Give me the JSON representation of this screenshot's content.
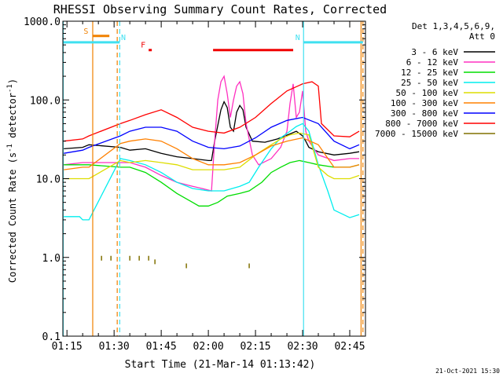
{
  "chart_data": {
    "type": "line",
    "title": "RHESSI Observing Summary Count Rates, Corrected",
    "xlabel": "Start Time (21-Mar-14 01:13:42)",
    "ylabel_main": "Corrected Count Rate (s",
    "ylabel_sup1": "-1",
    "ylabel_mid": " detector",
    "ylabel_sup2": "-1",
    "ylabel_end": ")",
    "yscale": "log",
    "ylim": [
      0.1,
      1000
    ],
    "xlim_minutes": [
      73.7,
      170
    ],
    "y_ticks": [
      {
        "v": 0.1,
        "label": "0.1"
      },
      {
        "v": 1,
        "label": "1.0"
      },
      {
        "v": 10,
        "label": "10.0"
      },
      {
        "v": 100,
        "label": "100.0"
      },
      {
        "v": 1000,
        "label": "1000.0"
      }
    ],
    "x_ticks": [
      {
        "t": 75,
        "label": "01:15"
      },
      {
        "t": 90,
        "label": "01:30"
      },
      {
        "t": 105,
        "label": "01:45"
      },
      {
        "t": 120,
        "label": "02:00"
      },
      {
        "t": 135,
        "label": "02:15"
      },
      {
        "t": 150,
        "label": "02:30"
      },
      {
        "t": 165,
        "label": "02:45"
      }
    ],
    "legend": {
      "header1": "Det 1,3,4,5,6,9,",
      "header2": "Att 0",
      "placement": "right"
    },
    "footer": "21-Oct-2021 15:30",
    "flags": [
      {
        "label": "S",
        "color": "#f08000",
        "start": 83.3,
        "end": 88.5,
        "y": 650
      },
      {
        "label": "N",
        "color": "#40e0f0",
        "start": 73.7,
        "end": 91.8,
        "y": 540
      },
      {
        "label": "N",
        "color": "#40e0f0",
        "start": 150.2,
        "end": 169.2,
        "y": 540
      },
      {
        "label": "F",
        "color": "#f00000",
        "start": 101.0,
        "end": 102.0,
        "y": 430
      },
      {
        "label": "",
        "color": "#f00000",
        "start": 121.5,
        "end": 147.0,
        "y": 430
      }
    ],
    "vlines": [
      {
        "t": 73.8,
        "color": "#40e0f0",
        "dash": false
      },
      {
        "t": 83.2,
        "color": "#f08000",
        "dash": false
      },
      {
        "t": 91.0,
        "color": "#f08000",
        "dash": true
      },
      {
        "t": 91.8,
        "color": "#40e0f0",
        "dash": true
      },
      {
        "t": 150.3,
        "color": "#40e0f0",
        "dash": false
      },
      {
        "t": 168.6,
        "color": "#f08000",
        "dash": false
      },
      {
        "t": 169.2,
        "color": "#f08000",
        "dash": true
      }
    ],
    "series": [
      {
        "name": "3 - 6 keV",
        "color": "#000000",
        "data": [
          [
            74,
            24
          ],
          [
            80,
            25
          ],
          [
            82,
            27
          ],
          [
            92,
            25
          ],
          [
            95,
            23
          ],
          [
            100,
            24
          ],
          [
            105,
            21
          ],
          [
            110,
            19
          ],
          [
            115,
            18
          ],
          [
            120,
            17
          ],
          [
            121,
            17
          ],
          [
            122,
            30
          ],
          [
            124,
            75
          ],
          [
            125,
            95
          ],
          [
            126,
            80
          ],
          [
            127,
            45
          ],
          [
            128,
            40
          ],
          [
            129,
            70
          ],
          [
            130,
            85
          ],
          [
            131,
            75
          ],
          [
            132,
            45
          ],
          [
            134,
            30
          ],
          [
            138,
            29
          ],
          [
            142,
            32
          ],
          [
            146,
            37
          ],
          [
            148,
            40
          ],
          [
            150,
            35
          ],
          [
            151,
            30
          ],
          [
            152,
            25
          ],
          [
            155,
            22
          ],
          [
            160,
            20
          ],
          [
            165,
            21
          ],
          [
            168,
            22
          ]
        ]
      },
      {
        "name": "6 - 12 keV",
        "color": "#ff30c0",
        "data": [
          [
            74,
            15
          ],
          [
            80,
            16
          ],
          [
            82,
            16
          ],
          [
            92,
            16
          ],
          [
            95,
            16
          ],
          [
            100,
            14
          ],
          [
            105,
            11
          ],
          [
            110,
            9
          ],
          [
            115,
            8
          ],
          [
            118,
            7.5
          ],
          [
            121,
            7
          ],
          [
            122,
            30
          ],
          [
            123,
            100
          ],
          [
            124,
            170
          ],
          [
            125,
            200
          ],
          [
            126,
            120
          ],
          [
            127,
            60
          ],
          [
            128,
            100
          ],
          [
            129,
            150
          ],
          [
            130,
            170
          ],
          [
            131,
            120
          ],
          [
            132,
            50
          ],
          [
            134,
            20
          ],
          [
            136,
            15
          ],
          [
            140,
            18
          ],
          [
            143,
            25
          ],
          [
            145,
            40
          ],
          [
            146,
            90
          ],
          [
            147,
            160
          ],
          [
            148,
            60
          ],
          [
            149,
            70
          ],
          [
            150,
            130
          ],
          [
            151,
            40
          ],
          [
            152,
            30
          ],
          [
            155,
            20
          ],
          [
            160,
            17
          ],
          [
            165,
            18
          ],
          [
            168,
            18
          ]
        ]
      },
      {
        "name": "12 - 25 keV",
        "color": "#00dd00",
        "data": [
          [
            74,
            15
          ],
          [
            80,
            15
          ],
          [
            82,
            15
          ],
          [
            92,
            14
          ],
          [
            95,
            14
          ],
          [
            100,
            12
          ],
          [
            105,
            9
          ],
          [
            110,
            6.5
          ],
          [
            115,
            5
          ],
          [
            117,
            4.5
          ],
          [
            120,
            4.5
          ],
          [
            123,
            5
          ],
          [
            126,
            6
          ],
          [
            130,
            6.5
          ],
          [
            133,
            7
          ],
          [
            137,
            9
          ],
          [
            140,
            12
          ],
          [
            143,
            14
          ],
          [
            146,
            16
          ],
          [
            149,
            17
          ],
          [
            152,
            16
          ],
          [
            155,
            15
          ],
          [
            160,
            14
          ],
          [
            165,
            14
          ],
          [
            168,
            15
          ]
        ]
      },
      {
        "name": "25 - 50 keV",
        "color": "#00eeee",
        "data": [
          [
            74,
            3.3
          ],
          [
            79,
            3.3
          ],
          [
            80,
            3.0
          ],
          [
            82,
            3.0
          ],
          [
            92,
            18
          ],
          [
            95,
            17
          ],
          [
            100,
            15
          ],
          [
            105,
            12
          ],
          [
            110,
            9
          ],
          [
            115,
            7.5
          ],
          [
            120,
            7
          ],
          [
            125,
            7
          ],
          [
            130,
            8
          ],
          [
            133,
            9
          ],
          [
            136,
            14
          ],
          [
            140,
            24
          ],
          [
            143,
            33
          ],
          [
            146,
            40
          ],
          [
            148,
            46
          ],
          [
            150,
            50
          ],
          [
            151,
            45
          ],
          [
            152,
            40
          ],
          [
            155,
            15
          ],
          [
            158,
            7
          ],
          [
            160,
            4
          ],
          [
            163,
            3.5
          ],
          [
            165,
            3.2
          ],
          [
            168,
            3.5
          ]
        ]
      },
      {
        "name": "50 - 100 keV",
        "color": "#dddd00",
        "data": [
          [
            74,
            10
          ],
          [
            80,
            10
          ],
          [
            82,
            10
          ],
          [
            92,
            17
          ],
          [
            95,
            16
          ],
          [
            100,
            17
          ],
          [
            105,
            16
          ],
          [
            110,
            15
          ],
          [
            115,
            13
          ],
          [
            120,
            13
          ],
          [
            125,
            13
          ],
          [
            130,
            14
          ],
          [
            135,
            20
          ],
          [
            140,
            27
          ],
          [
            143,
            32
          ],
          [
            146,
            36
          ],
          [
            149,
            38
          ],
          [
            152,
            36
          ],
          [
            155,
            14
          ],
          [
            158,
            11
          ],
          [
            160,
            10
          ],
          [
            165,
            10
          ],
          [
            168,
            11
          ]
        ]
      },
      {
        "name": "100 - 300 keV",
        "color": "#ff8000",
        "data": [
          [
            74,
            13
          ],
          [
            80,
            14
          ],
          [
            82,
            14
          ],
          [
            92,
            28
          ],
          [
            95,
            30
          ],
          [
            100,
            32
          ],
          [
            105,
            30
          ],
          [
            110,
            24
          ],
          [
            115,
            18
          ],
          [
            120,
            15
          ],
          [
            125,
            15
          ],
          [
            130,
            16
          ],
          [
            135,
            20
          ],
          [
            140,
            26
          ],
          [
            145,
            30
          ],
          [
            150,
            33
          ],
          [
            155,
            27
          ],
          [
            160,
            14
          ],
          [
            165,
            14
          ],
          [
            168,
            15
          ]
        ]
      },
      {
        "name": "300 - 800 keV",
        "color": "#0000ff",
        "data": [
          [
            74,
            21
          ],
          [
            80,
            23
          ],
          [
            82,
            25
          ],
          [
            92,
            35
          ],
          [
            95,
            40
          ],
          [
            100,
            45
          ],
          [
            105,
            45
          ],
          [
            110,
            40
          ],
          [
            115,
            30
          ],
          [
            120,
            25
          ],
          [
            125,
            24
          ],
          [
            130,
            26
          ],
          [
            135,
            33
          ],
          [
            140,
            45
          ],
          [
            145,
            55
          ],
          [
            150,
            60
          ],
          [
            155,
            50
          ],
          [
            160,
            30
          ],
          [
            165,
            24
          ],
          [
            168,
            27
          ]
        ]
      },
      {
        "name": "800 - 7000 keV",
        "color": "#ff0000",
        "data": [
          [
            74,
            30
          ],
          [
            80,
            32
          ],
          [
            82,
            35
          ],
          [
            92,
            50
          ],
          [
            95,
            55
          ],
          [
            100,
            65
          ],
          [
            105,
            75
          ],
          [
            110,
            60
          ],
          [
            115,
            45
          ],
          [
            120,
            40
          ],
          [
            125,
            38
          ],
          [
            130,
            45
          ],
          [
            135,
            60
          ],
          [
            140,
            90
          ],
          [
            145,
            130
          ],
          [
            150,
            160
          ],
          [
            153,
            170
          ],
          [
            155,
            150
          ],
          [
            156,
            50
          ],
          [
            160,
            35
          ],
          [
            165,
            34
          ],
          [
            168,
            40
          ]
        ]
      },
      {
        "name": "7000 - 15000 keV",
        "color": "#807000",
        "data": [
          [
            86,
            1.0
          ],
          [
            89,
            1.0
          ],
          [
            95,
            1.0
          ],
          [
            98,
            1.0
          ],
          [
            101,
            1.0
          ],
          [
            103,
            0.9
          ],
          [
            113,
            0.8
          ],
          [
            133,
            0.8
          ]
        ]
      }
    ]
  }
}
